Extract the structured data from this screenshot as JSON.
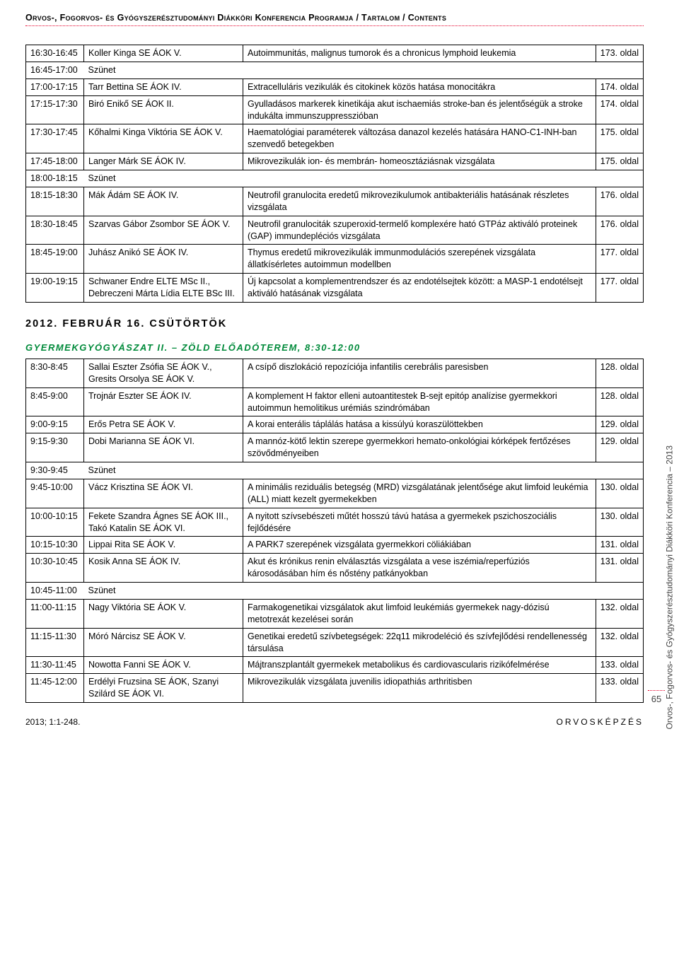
{
  "header": "Orvos-, Fogorvos- és Gyógyszerésztudományi Diákköri Konferencia Programja / Tartalom / Contents",
  "side_text": "Orvos-, Fogorvos- és Gyógyszerésztudományi Diákköri Konferencia – 2013",
  "date_heading": "2012. FEBRUÁR 16. CSÜTÖRTÖK",
  "section_heading": "GYERMEKGYÓGYÁSZAT II. – ZÖLD ELŐADÓTEREM, 8:30-12:00",
  "break_label": "Szünet",
  "table1": [
    {
      "time": "16:30-16:45",
      "name": "Koller Kinga SE ÁOK V.",
      "title": "Autoimmunitás, malignus tumorok és a chronicus lymphoid leukemia",
      "page": "173. oldal"
    },
    {
      "time": "16:45-17:00",
      "break": true
    },
    {
      "time": "17:00-17:15",
      "name": "Tarr Bettina SE ÁOK IV.",
      "title": "Extracelluláris vezikulák és citokinek közös hatása monocitákra",
      "page": "174. oldal"
    },
    {
      "time": "17:15-17:30",
      "name": "Biró Enikő SE ÁOK II.",
      "title": "Gyulladásos markerek kinetikája akut ischaemiás stroke-ban és jelentőségük a stroke indukálta immunszuppresszióban",
      "page": "174. oldal"
    },
    {
      "time": "17:30-17:45",
      "name": "Kőhalmi Kinga Viktória SE ÁOK V.",
      "title": "Haematológiai paraméterek változása danazol kezelés hatására HANO-C1-INH-ban szenvedő betegekben",
      "page": "175. oldal"
    },
    {
      "time": "17:45-18:00",
      "name": "Langer Márk SE ÁOK IV.",
      "title": "Mikrovezikulák ion- és membrán- homeosztáziásnak vizsgálata",
      "page": "175. oldal"
    },
    {
      "time": "18:00-18:15",
      "break": true
    },
    {
      "time": "18:15-18:30",
      "name": "Mák Ádám SE ÁOK IV.",
      "title": "Neutrofil granulocita eredetű mikrovezikulumok antibakteriális hatásának részletes vizsgálata",
      "page": "176. oldal"
    },
    {
      "time": "18:30-18:45",
      "name": "Szarvas Gábor Zsombor SE ÁOK V.",
      "title": "Neutrofil granulociták szuperoxid-termelő komplexére ható GTPáz aktiváló proteinek (GAP) immundepléciós vizsgálata",
      "page": "176. oldal"
    },
    {
      "time": "18:45-19:00",
      "name": "Juhász Anikó SE ÁOK IV.",
      "title": "Thymus eredetű mikrovezikulák immunmodulációs szerepének vizsgálata állatkísérletes autoimmun modellben",
      "page": "177. oldal"
    },
    {
      "time": "19:00-19:15",
      "name": "Schwaner Endre ELTE MSc II., Debreczeni Márta Lídia ELTE BSc III.",
      "title": "Új kapcsolat a komplementrendszer és az endotélsejtek között: a MASP-1 endotélsejt aktiváló hatásának vizsgálata",
      "page": "177. oldal"
    }
  ],
  "table2": [
    {
      "time": "8:30-8:45",
      "name": "Sallai Eszter Zsófia SE ÁOK V., Gresits Orsolya SE ÁOK V.",
      "title": "A csípő diszlokáció repozíciója infantilis cerebrális paresisben",
      "page": "128. oldal"
    },
    {
      "time": "8:45-9:00",
      "name": "Trojnár Eszter SE ÁOK IV.",
      "title": "A komplement H faktor elleni autoantitestek B-sejt epitóp analízise gyermekkori autoimmun hemolitikus urémiás szindrómában",
      "page": "128. oldal"
    },
    {
      "time": "9:00-9:15",
      "name": "Erős Petra SE ÁOK V.",
      "title": "A korai enterális táplálás hatása a kissúlyú koraszülöttekben",
      "page": "129. oldal"
    },
    {
      "time": "9:15-9:30",
      "name": "Dobi Marianna SE ÁOK VI.",
      "title": "A mannóz-kötő lektin szerepe gyermekkori hemato-onkológiai kórképek fertőzéses szövődményeiben",
      "page": "129. oldal"
    },
    {
      "time": "9:30-9:45",
      "break": true
    },
    {
      "time": "9:45-10:00",
      "name": "Vácz Krisztina SE ÁOK VI.",
      "title": "A minimális reziduális betegség (MRD) vizsgálatának jelentősége akut limfoid leukémia (ALL) miatt kezelt gyermekekben",
      "page": "130. oldal"
    },
    {
      "time": "10:00-10:15",
      "name": "Fekete Szandra Ágnes SE ÁOK III., Takó Katalin SE ÁOK VI.",
      "title": "A nyitott szívsebészeti műtét hosszú távú hatása a gyermekek pszichoszociális fejlődésére",
      "page": "130. oldal"
    },
    {
      "time": "10:15-10:30",
      "name": "Lippai Rita SE ÁOK V.",
      "title": "A PARK7 szerepének vizsgálata gyermekkori cöliákiában",
      "page": "131. oldal"
    },
    {
      "time": "10:30-10:45",
      "name": "Kosik Anna SE ÁOK IV.",
      "title": "Akut és krónikus renin elválasztás vizsgálata a vese iszémia/reperfúziós károsodásában hím és nőstény patkányokban",
      "page": "131. oldal"
    },
    {
      "time": "10:45-11:00",
      "break": true
    },
    {
      "time": "11:00-11:15",
      "name": "Nagy Viktória SE ÁOK V.",
      "title": "Farmakogenetikai vizsgálatok akut limfoid leukémiás gyermekek nagy-dózisú metotrexát kezelései során",
      "page": "132. oldal"
    },
    {
      "time": "11:15-11:30",
      "name": "Móró Nárcisz SE ÁOK V.",
      "title": "Genetikai eredetű szívbetegségek: 22q11 mikrodeléció és szívfejlődési rendellenesség társulása",
      "page": "132. oldal"
    },
    {
      "time": "11:30-11:45",
      "name": "Nowotta Fanni SE ÁOK V.",
      "title": "Májtranszplantált gyermekek metabolikus és cardiovascularis rizikófelmérése",
      "page": "133. oldal"
    },
    {
      "time": "11:45-12:00",
      "name": "Erdélyi Fruzsina SE ÁOK, Szanyi Szilárd SE ÁOK VI.",
      "title": "Mikrovezikulák vizsgálata juvenilis idiopathiás arthritisben",
      "page": "133. oldal"
    }
  ],
  "page_number": "65",
  "footer_left": "2013; 1:1-248.",
  "footer_right": "ORVOSKÉPZÉS"
}
